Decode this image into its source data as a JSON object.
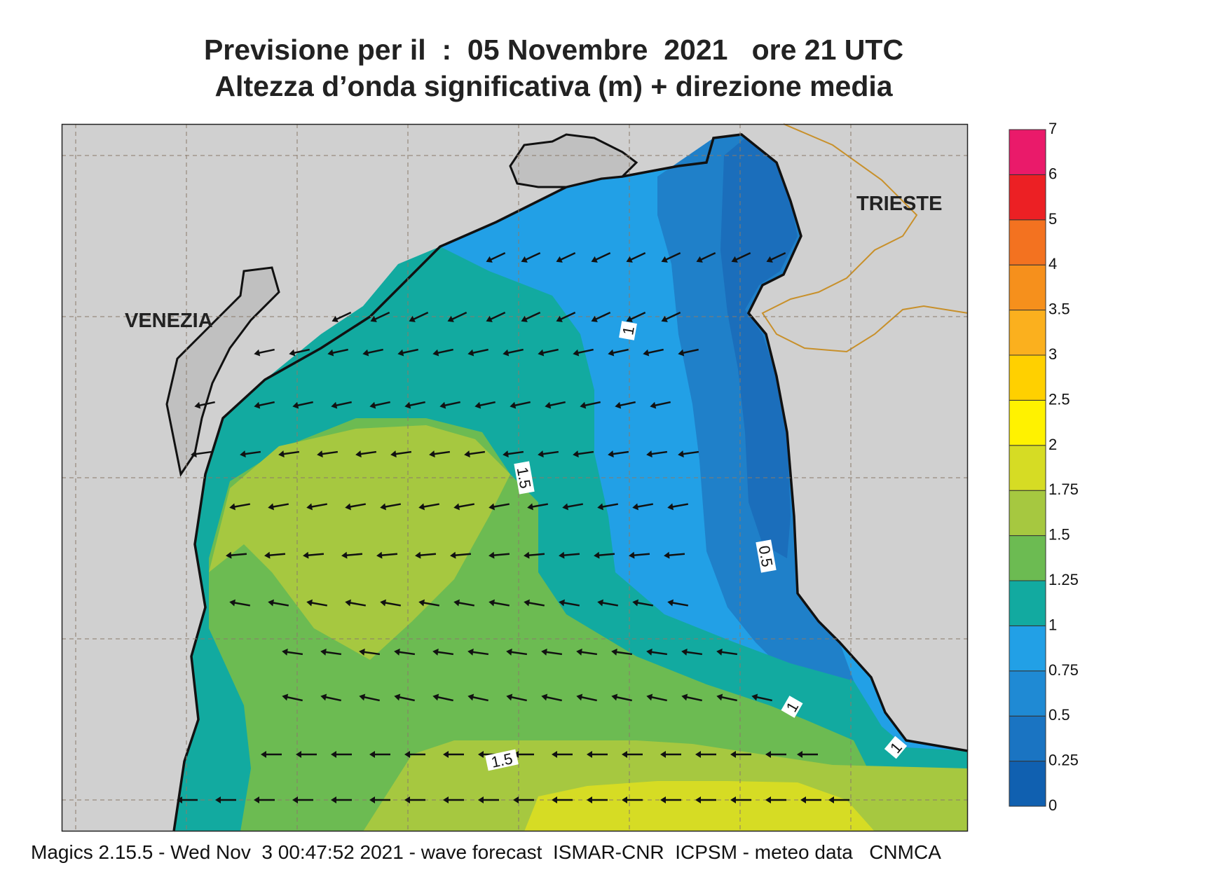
{
  "title": {
    "line1": "Previsione per il  :  05 Novembre  2021   ore 21 UTC",
    "line2": "Altezza d’onda significativa (m) + direzione media"
  },
  "places": {
    "venezia": "VENEZIA",
    "trieste": "TRIESTE"
  },
  "contour_labels": [
    "1",
    "1.5",
    "0.5",
    "1",
    "1.5",
    "1"
  ],
  "legend": {
    "levels": [
      "0",
      "0.25",
      "0.5",
      "0.75",
      "1",
      "1.25",
      "1.5",
      "1.75",
      "2",
      "2.5",
      "3",
      "3.5",
      "4",
      "5",
      "6",
      "7"
    ],
    "colors": [
      "#1060b0",
      "#1a74c2",
      "#1f8ad4",
      "#22a0e6",
      "#12aaa0",
      "#6cbb52",
      "#a6c840",
      "#d6dc24",
      "#fff200",
      "#ffd000",
      "#fbb01e",
      "#f6901c",
      "#f37220",
      "#ec2024",
      "#ea1a6a"
    ]
  },
  "footer": "Magics 2.15.5 - Wed Nov  3 00:47:52 2021 - wave forecast  ISMAR-CNR  ICPSM - meteo data   CNMCA"
}
